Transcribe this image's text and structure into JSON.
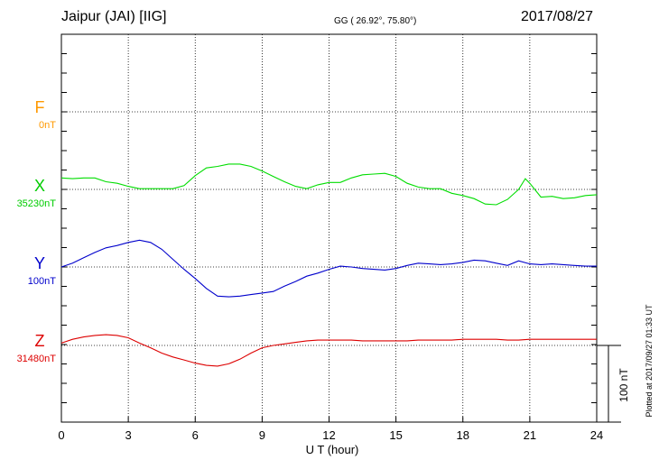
{
  "header": {
    "title": "Jaipur (JAI)  [IIG]",
    "coords": "GG ( 26.92°,  75.80°)",
    "date": "2017/08/27"
  },
  "colors": {
    "F": "#ff9900",
    "X": "#00dd00",
    "Y": "#0000cc",
    "Z": "#dd0000"
  },
  "chart_data": {
    "type": "line",
    "title": "Jaipur (JAI)  [IIG]",
    "xlabel": "U T (hour)",
    "xlim": [
      0,
      24
    ],
    "x_ticks": [
      "0",
      "3",
      "6",
      "9",
      "12",
      "15",
      "18",
      "21",
      "24"
    ],
    "grid": true,
    "scale_bar": {
      "label": "100 nT",
      "value_nT": 100
    },
    "plotted_note": "Plotted at 2017/09/27 01:33 UT",
    "series": [
      {
        "name": "F",
        "baseline": "0nT",
        "x": [],
        "y": []
      },
      {
        "name": "X",
        "baseline": "35230nT",
        "x": [
          0,
          0.5,
          1,
          1.5,
          2,
          2.5,
          3,
          3.5,
          4,
          4.5,
          5,
          5.5,
          6,
          6.5,
          7,
          7.5,
          8,
          8.5,
          9,
          9.5,
          10,
          10.5,
          11,
          11.5,
          12,
          12.5,
          13,
          13.5,
          14,
          14.5,
          15,
          15.5,
          16,
          16.5,
          17,
          17.5,
          18,
          18.5,
          19,
          19.5,
          20,
          20.5,
          20.8,
          21,
          21.5,
          22,
          22.5,
          23,
          23.5,
          24
        ],
        "y": [
          15,
          14,
          15,
          15,
          10,
          8,
          4,
          1,
          1,
          1,
          1,
          5,
          18,
          28,
          30,
          33,
          33,
          30,
          24,
          17,
          10,
          4,
          1,
          6,
          9,
          9,
          15,
          19,
          20,
          21,
          17,
          8,
          3,
          1,
          1,
          -5,
          -8,
          -12,
          -19,
          -20,
          -13,
          0,
          14,
          8,
          -10,
          -9,
          -12,
          -11,
          -8,
          -7
        ]
      },
      {
        "name": "Y",
        "baseline": "100nT",
        "x": [
          0,
          0.5,
          1,
          1.5,
          2,
          2.5,
          3,
          3.5,
          4,
          4.5,
          5,
          5.5,
          6,
          6.5,
          7,
          7.5,
          8,
          8.5,
          9,
          9.5,
          10,
          10.5,
          11,
          11.5,
          12,
          12.5,
          13,
          13.5,
          14,
          14.5,
          15,
          15.5,
          16,
          16.5,
          17,
          17.5,
          18,
          18.5,
          19,
          19.5,
          20,
          20.5,
          21,
          21.5,
          22,
          22.5,
          23,
          23.5,
          24
        ],
        "y": [
          0,
          5,
          12,
          19,
          25,
          28,
          32,
          35,
          32,
          23,
          10,
          -3,
          -15,
          -28,
          -38,
          -39,
          -38,
          -36,
          -34,
          -32,
          -25,
          -19,
          -12,
          -8,
          -3,
          1,
          0,
          -2,
          -3,
          -4,
          -2,
          2,
          5,
          4,
          3,
          4,
          6,
          9,
          8,
          5,
          2,
          8,
          4,
          3,
          4,
          3,
          2,
          1,
          1
        ]
      },
      {
        "name": "Z",
        "baseline": "31480nT",
        "x": [
          0,
          0.5,
          1,
          1.5,
          2,
          2.5,
          3,
          3.5,
          4,
          4.5,
          5,
          5.5,
          6,
          6.5,
          7,
          7.5,
          8,
          8.5,
          9,
          9.5,
          10,
          10.5,
          11,
          11.5,
          12,
          12.5,
          13,
          13.5,
          14,
          14.5,
          15,
          15.5,
          16,
          16.5,
          17,
          17.5,
          18,
          18.5,
          19,
          19.5,
          20,
          20.5,
          21,
          21.5,
          22,
          22.5,
          23,
          23.5,
          24
        ],
        "y": [
          3,
          8,
          11,
          13,
          14,
          13,
          10,
          3,
          -3,
          -10,
          -15,
          -19,
          -23,
          -26,
          -27,
          -24,
          -18,
          -10,
          -3,
          0,
          2,
          4,
          6,
          7,
          7,
          7,
          7,
          6,
          6,
          6,
          6,
          6,
          7,
          7,
          7,
          7,
          8,
          8,
          8,
          8,
          7,
          7,
          8,
          8,
          8,
          8,
          8,
          8,
          8
        ]
      }
    ]
  }
}
